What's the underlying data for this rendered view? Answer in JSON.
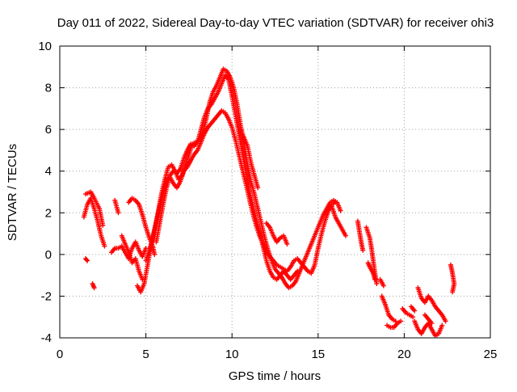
{
  "chart_data": {
    "type": "scatter",
    "title": "Day 011 of 2022, Sidereal Day-to-day VTEC variation (SDTVAR) for receiver ohi3",
    "xlabel": "GPS time / hours",
    "ylabel": "SDTVAR / TECUs",
    "xlim": [
      0,
      25
    ],
    "ylim": [
      -4,
      10
    ],
    "xticks": [
      0,
      5,
      10,
      15,
      20,
      25
    ],
    "yticks": [
      -4,
      -2,
      0,
      2,
      4,
      6,
      8,
      10
    ],
    "grid": true,
    "marker": "+",
    "marker_color": "#ff0000",
    "series": [
      {
        "name": "ohi3",
        "tracks": [
          [
            [
              1.4,
              1.8
            ],
            [
              1.6,
              2.4
            ],
            [
              1.8,
              2.7
            ],
            [
              2.0,
              2.2
            ],
            [
              2.2,
              1.6
            ],
            [
              2.4,
              0.9
            ],
            [
              2.6,
              0.4
            ]
          ],
          [
            [
              1.5,
              2.9
            ],
            [
              1.8,
              3.0
            ],
            [
              2.0,
              2.7
            ],
            [
              2.3,
              2.2
            ],
            [
              2.5,
              1.4
            ]
          ],
          [
            [
              1.5,
              -0.2
            ],
            [
              1.6,
              -0.3
            ]
          ],
          [
            [
              1.9,
              -1.4
            ],
            [
              2.0,
              -1.6
            ]
          ],
          [
            [
              3.0,
              0.1
            ],
            [
              3.2,
              0.3
            ],
            [
              3.4,
              0.3
            ],
            [
              3.6,
              0.4
            ],
            [
              3.8,
              0.1
            ],
            [
              4.0,
              -0.2
            ],
            [
              4.2,
              0.3
            ],
            [
              4.4,
              0.6
            ],
            [
              4.6,
              0.2
            ],
            [
              4.8,
              -0.1
            ],
            [
              5.0,
              0.3
            ]
          ],
          [
            [
              3.2,
              2.6
            ],
            [
              3.4,
              2.0
            ]
          ],
          [
            [
              3.6,
              0.9
            ],
            [
              3.8,
              0.5
            ],
            [
              4.0,
              0.1
            ],
            [
              4.2,
              -0.4
            ],
            [
              4.4,
              -0.2
            ],
            [
              4.6,
              -0.8
            ],
            [
              4.8,
              -1.2
            ]
          ],
          [
            [
              4.0,
              2.5
            ],
            [
              4.2,
              2.7
            ],
            [
              4.4,
              2.6
            ],
            [
              4.6,
              2.4
            ],
            [
              4.8,
              1.9
            ],
            [
              5.0,
              1.3
            ],
            [
              5.2,
              0.8
            ],
            [
              5.4,
              0.4
            ],
            [
              5.5,
              0.0
            ]
          ],
          [
            [
              4.5,
              -1.5
            ],
            [
              4.7,
              -1.8
            ],
            [
              4.9,
              -1.4
            ],
            [
              5.1,
              -0.5
            ],
            [
              5.3,
              0.4
            ],
            [
              5.5,
              1.2
            ],
            [
              5.7,
              2.0
            ],
            [
              5.9,
              2.9
            ],
            [
              6.1,
              3.6
            ],
            [
              6.3,
              4.2
            ],
            [
              6.5,
              4.3
            ],
            [
              6.7,
              4.0
            ],
            [
              6.9,
              3.6
            ],
            [
              7.1,
              3.8
            ],
            [
              7.3,
              4.3
            ],
            [
              7.5,
              4.8
            ],
            [
              7.7,
              5.3
            ],
            [
              7.9,
              5.4
            ],
            [
              8.1,
              5.5
            ],
            [
              8.3,
              5.8
            ],
            [
              8.5,
              6.5
            ],
            [
              8.7,
              7.3
            ],
            [
              8.9,
              7.8
            ],
            [
              9.1,
              8.1
            ],
            [
              9.3,
              8.5
            ],
            [
              9.5,
              8.9
            ],
            [
              9.7,
              8.8
            ],
            [
              9.9,
              8.5
            ],
            [
              10.1,
              8.0
            ],
            [
              10.3,
              7.2
            ],
            [
              10.5,
              6.2
            ],
            [
              10.7,
              5.3
            ],
            [
              10.9,
              4.3
            ],
            [
              11.1,
              3.5
            ],
            [
              11.3,
              2.9
            ],
            [
              11.5,
              2.2
            ],
            [
              11.7,
              1.5
            ],
            [
              11.9,
              0.8
            ],
            [
              12.1,
              0.2
            ],
            [
              12.3,
              -0.3
            ],
            [
              12.5,
              -0.7
            ],
            [
              12.7,
              -0.9
            ],
            [
              12.9,
              -1.1
            ],
            [
              13.1,
              -1.4
            ],
            [
              13.3,
              -1.6
            ],
            [
              13.5,
              -1.5
            ],
            [
              13.7,
              -1.3
            ],
            [
              13.9,
              -0.9
            ],
            [
              14.1,
              -0.5
            ],
            [
              14.3,
              -0.1
            ],
            [
              14.5,
              0.3
            ],
            [
              14.7,
              0.7
            ],
            [
              14.9,
              1.1
            ],
            [
              15.1,
              1.5
            ],
            [
              15.3,
              1.9
            ],
            [
              15.5,
              2.2
            ],
            [
              15.7,
              2.5
            ],
            [
              15.9,
              2.6
            ],
            [
              16.1,
              2.5
            ],
            [
              16.3,
              2.1
            ]
          ],
          [
            [
              5.0,
              -0.3
            ],
            [
              5.2,
              0.2
            ],
            [
              5.4,
              0.8
            ],
            [
              5.6,
              1.5
            ],
            [
              5.8,
              2.3
            ],
            [
              6.0,
              3.0
            ],
            [
              6.2,
              3.6
            ],
            [
              6.4,
              3.7
            ],
            [
              6.6,
              3.4
            ],
            [
              6.8,
              3.2
            ],
            [
              7.0,
              3.5
            ],
            [
              7.2,
              4.0
            ],
            [
              7.4,
              4.2
            ],
            [
              7.6,
              4.5
            ],
            [
              7.8,
              4.8
            ],
            [
              8.0,
              5.0
            ],
            [
              8.2,
              5.4
            ],
            [
              8.4,
              5.8
            ],
            [
              8.6,
              6.1
            ],
            [
              8.8,
              6.3
            ],
            [
              9.0,
              6.5
            ],
            [
              9.2,
              6.7
            ],
            [
              9.4,
              6.9
            ],
            [
              9.6,
              6.8
            ],
            [
              9.8,
              6.5
            ],
            [
              10.0,
              6.1
            ],
            [
              10.2,
              5.5
            ],
            [
              10.4,
              4.8
            ],
            [
              10.6,
              4.1
            ],
            [
              10.8,
              3.4
            ],
            [
              11.0,
              2.7
            ],
            [
              11.2,
              2.0
            ],
            [
              11.4,
              1.4
            ],
            [
              11.6,
              0.9
            ],
            [
              11.8,
              0.5
            ],
            [
              12.0,
              0.1
            ],
            [
              12.2,
              -0.1
            ],
            [
              12.4,
              -0.3
            ],
            [
              12.6,
              -0.5
            ],
            [
              12.8,
              -0.6
            ],
            [
              13.0,
              -0.7
            ],
            [
              13.2,
              -0.8
            ],
            [
              13.4,
              -0.6
            ],
            [
              13.6,
              -0.3
            ],
            [
              13.8,
              -0.2
            ],
            [
              14.0,
              -0.4
            ],
            [
              14.2,
              -0.6
            ],
            [
              14.4,
              -0.8
            ],
            [
              14.6,
              -0.9
            ],
            [
              14.8,
              -0.5
            ],
            [
              15.0,
              0.3
            ],
            [
              15.2,
              1.0
            ],
            [
              15.4,
              1.6
            ],
            [
              15.6,
              2.1
            ],
            [
              15.8,
              2.4
            ],
            [
              16.0,
              2.5
            ]
          ],
          [
            [
              5.6,
              0.6
            ],
            [
              5.8,
              1.5
            ],
            [
              6.0,
              2.4
            ],
            [
              6.2,
              3.2
            ],
            [
              6.4,
              3.8
            ],
            [
              6.6,
              4.0
            ],
            [
              6.8,
              3.9
            ],
            [
              7.0,
              4.1
            ],
            [
              7.2,
              4.6
            ],
            [
              7.4,
              5.0
            ],
            [
              7.6,
              5.3
            ],
            [
              7.8,
              5.2
            ],
            [
              8.0,
              5.4
            ],
            [
              8.2,
              6.0
            ],
            [
              8.4,
              6.6
            ],
            [
              8.6,
              7.0
            ],
            [
              8.8,
              7.2
            ],
            [
              9.0,
              7.5
            ],
            [
              9.2,
              7.8
            ],
            [
              9.4,
              8.2
            ],
            [
              9.6,
              8.6
            ],
            [
              9.8,
              8.4
            ],
            [
              10.0,
              7.6
            ],
            [
              10.2,
              6.7
            ],
            [
              10.4,
              5.8
            ],
            [
              10.6,
              4.9
            ],
            [
              10.8,
              4.0
            ],
            [
              11.0,
              3.1
            ],
            [
              11.2,
              2.4
            ],
            [
              11.4,
              1.7
            ],
            [
              11.6,
              1.1
            ],
            [
              11.8,
              0.4
            ],
            [
              12.0,
              -0.3
            ],
            [
              12.2,
              -0.8
            ],
            [
              12.4,
              -1.1
            ],
            [
              12.6,
              -1.2
            ],
            [
              12.8,
              -1.0
            ],
            [
              13.0,
              -0.8
            ],
            [
              13.2,
              -1.0
            ],
            [
              13.4,
              -1.2
            ],
            [
              13.6,
              -1.0
            ],
            [
              13.8,
              -0.8
            ]
          ],
          [
            [
              10.5,
              6.0
            ],
            [
              10.7,
              5.6
            ],
            [
              10.9,
              5.2
            ],
            [
              11.1,
              4.4
            ],
            [
              11.3,
              3.8
            ],
            [
              11.5,
              3.2
            ]
          ],
          [
            [
              12.0,
              1.5
            ],
            [
              12.2,
              1.3
            ],
            [
              12.4,
              0.9
            ],
            [
              12.6,
              0.6
            ],
            [
              12.8,
              0.8
            ],
            [
              13.0,
              0.9
            ],
            [
              13.2,
              0.5
            ]
          ],
          [
            [
              15.8,
              2.3
            ],
            [
              16.0,
              1.8
            ],
            [
              16.2,
              1.5
            ],
            [
              16.4,
              1.2
            ],
            [
              16.6,
              0.9
            ]
          ],
          [
            [
              17.3,
              1.6
            ],
            [
              17.4,
              1.1
            ],
            [
              17.5,
              0.6
            ],
            [
              17.6,
              0.2
            ]
          ],
          [
            [
              17.8,
              1.3
            ],
            [
              18.0,
              0.8
            ],
            [
              18.1,
              0.3
            ],
            [
              18.2,
              -0.3
            ],
            [
              18.3,
              -0.9
            ],
            [
              18.4,
              -1.4
            ]
          ],
          [
            [
              17.9,
              -0.4
            ],
            [
              18.0,
              -0.6
            ],
            [
              18.2,
              -0.9
            ],
            [
              18.3,
              -1.2
            ]
          ],
          [
            [
              18.6,
              -1.2
            ],
            [
              18.8,
              -1.5
            ]
          ],
          [
            [
              18.7,
              -2.0
            ],
            [
              18.9,
              -2.4
            ],
            [
              19.1,
              -2.9
            ],
            [
              19.3,
              -3.1
            ],
            [
              19.5,
              -3.2
            ]
          ],
          [
            [
              19.0,
              -3.4
            ],
            [
              19.2,
              -3.5
            ],
            [
              19.4,
              -3.5
            ],
            [
              19.6,
              -3.3
            ],
            [
              19.8,
              -3.2
            ]
          ],
          [
            [
              19.9,
              -2.6
            ],
            [
              20.1,
              -2.8
            ],
            [
              20.3,
              -2.9
            ],
            [
              20.5,
              -3.0
            ]
          ],
          [
            [
              20.4,
              -2.5
            ],
            [
              20.6,
              -2.7
            ]
          ],
          [
            [
              20.6,
              -3.2
            ],
            [
              20.8,
              -3.6
            ],
            [
              21.0,
              -3.8
            ],
            [
              21.2,
              -3.5
            ],
            [
              21.4,
              -3.3
            ],
            [
              21.6,
              -3.6
            ],
            [
              21.8,
              -3.9
            ],
            [
              22.0,
              -3.8
            ],
            [
              22.2,
              -3.4
            ]
          ],
          [
            [
              20.8,
              -1.6
            ],
            [
              21.0,
              -2.1
            ],
            [
              21.2,
              -2.3
            ],
            [
              21.4,
              -2.0
            ],
            [
              21.6,
              -2.2
            ],
            [
              21.8,
              -2.5
            ],
            [
              22.0,
              -2.7
            ],
            [
              22.2,
              -2.9
            ],
            [
              22.4,
              -3.2
            ]
          ],
          [
            [
              21.2,
              -2.9
            ],
            [
              21.4,
              -3.1
            ],
            [
              21.6,
              -3.3
            ]
          ],
          [
            [
              22.7,
              -0.5
            ],
            [
              22.8,
              -0.9
            ],
            [
              22.9,
              -1.4
            ],
            [
              22.8,
              -1.8
            ]
          ]
        ]
      }
    ]
  }
}
